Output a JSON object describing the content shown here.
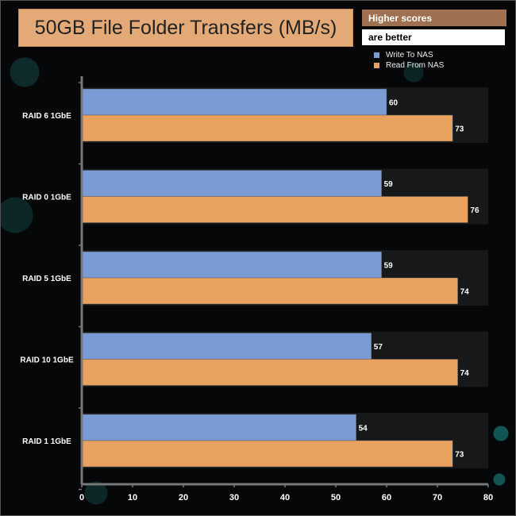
{
  "chart_data": {
    "type": "bar",
    "orientation": "horizontal",
    "title": "50GB File Folder Transfers (MB/s)",
    "categories": [
      "RAID 6 1GbE",
      "RAID 0 1GbE",
      "RAID 5 1GbE",
      "RAID 10 1GbE",
      "RAID 1 1GbE"
    ],
    "series": [
      {
        "name": "Write To NAS",
        "color": "#7b9bd4",
        "values": [
          60,
          59,
          59,
          57,
          54
        ]
      },
      {
        "name": "Read From NAS",
        "color": "#e8a15e",
        "values": [
          73,
          76,
          74,
          74,
          73
        ]
      }
    ],
    "xlim": [
      0,
      80
    ],
    "xticks": [
      0,
      10,
      20,
      30,
      40,
      50,
      60,
      70,
      80
    ],
    "legend_position": "top-right",
    "grid": false
  },
  "badge": {
    "line1": "Higher scores",
    "line2": "are better"
  }
}
